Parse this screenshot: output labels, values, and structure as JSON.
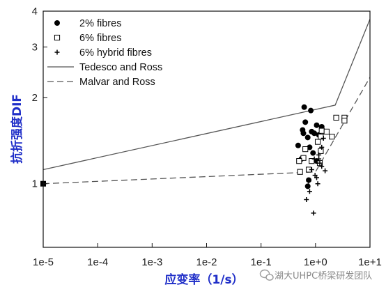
{
  "chart_data": {
    "type": "scatter",
    "xlabel": "应变率（1/s）",
    "ylabel": "抗折强度DIF",
    "xscale": "log",
    "yscale": "log",
    "xlim": [
      1e-05,
      10
    ],
    "ylim": [
      0.6,
      4
    ],
    "x_ticks": [
      {
        "value": 1e-05,
        "label": "1e-5"
      },
      {
        "value": 0.0001,
        "label": "1e-4"
      },
      {
        "value": 0.001,
        "label": "1e-3"
      },
      {
        "value": 0.01,
        "label": "1e-2"
      },
      {
        "value": 0.1,
        "label": "1e-1"
      },
      {
        "value": 1,
        "label": "1e+0"
      },
      {
        "value": 10,
        "label": "1e+1"
      }
    ],
    "y_ticks": [
      {
        "value": 1,
        "label": "1"
      },
      {
        "value": 2,
        "label": "2"
      },
      {
        "value": 3,
        "label": "3"
      },
      {
        "value": 4,
        "label": "4"
      }
    ],
    "legend_position": "top-left",
    "grid": false,
    "series": [
      {
        "name": "2% fibres",
        "kind": "points",
        "marker": "filled-circle",
        "color": "#000000",
        "points": [
          {
            "x": 0.62,
            "y": 1.85
          },
          {
            "x": 0.82,
            "y": 1.8
          },
          {
            "x": 0.65,
            "y": 1.64
          },
          {
            "x": 1.05,
            "y": 1.6
          },
          {
            "x": 1.3,
            "y": 1.58
          },
          {
            "x": 0.58,
            "y": 1.54
          },
          {
            "x": 0.85,
            "y": 1.52
          },
          {
            "x": 0.95,
            "y": 1.5
          },
          {
            "x": 0.6,
            "y": 1.5
          },
          {
            "x": 1.15,
            "y": 1.48
          },
          {
            "x": 0.72,
            "y": 1.45
          },
          {
            "x": 0.48,
            "y": 1.36
          },
          {
            "x": 0.78,
            "y": 1.34
          },
          {
            "x": 0.9,
            "y": 1.28
          },
          {
            "x": 0.55,
            "y": 1.22
          },
          {
            "x": 1.05,
            "y": 1.2
          },
          {
            "x": 0.75,
            "y": 1.03
          },
          {
            "x": 0.72,
            "y": 0.98
          }
        ]
      },
      {
        "name": "6% fibres",
        "kind": "points",
        "marker": "open-square",
        "color": "#000000",
        "points": [
          {
            "x": 2.4,
            "y": 1.7
          },
          {
            "x": 3.4,
            "y": 1.7
          },
          {
            "x": 3.4,
            "y": 1.66
          },
          {
            "x": 1.3,
            "y": 1.53
          },
          {
            "x": 1.6,
            "y": 1.52
          },
          {
            "x": 1.25,
            "y": 1.46
          },
          {
            "x": 2.0,
            "y": 1.46
          },
          {
            "x": 1.1,
            "y": 1.4
          },
          {
            "x": 0.65,
            "y": 1.32
          },
          {
            "x": 1.25,
            "y": 1.3
          },
          {
            "x": 0.6,
            "y": 1.23
          },
          {
            "x": 0.5,
            "y": 1.2
          },
          {
            "x": 0.85,
            "y": 1.2
          },
          {
            "x": 1.2,
            "y": 1.18
          },
          {
            "x": 0.52,
            "y": 1.1
          },
          {
            "x": 0.75,
            "y": 1.12
          }
        ]
      },
      {
        "name": "6% hybrid fibres",
        "kind": "points",
        "marker": "plus",
        "color": "#000000",
        "points": [
          {
            "x": 1.4,
            "y": 1.44
          },
          {
            "x": 1.3,
            "y": 1.34
          },
          {
            "x": 1.15,
            "y": 1.26
          },
          {
            "x": 0.95,
            "y": 1.22
          },
          {
            "x": 1.15,
            "y": 1.22
          },
          {
            "x": 1.2,
            "y": 1.18
          },
          {
            "x": 1.3,
            "y": 1.15
          },
          {
            "x": 0.85,
            "y": 1.12
          },
          {
            "x": 1.5,
            "y": 1.11
          },
          {
            "x": 0.98,
            "y": 1.07
          },
          {
            "x": 1.05,
            "y": 1.05
          },
          {
            "x": 0.75,
            "y": 1.02
          },
          {
            "x": 1.1,
            "y": 1.0
          },
          {
            "x": 0.78,
            "y": 0.94
          },
          {
            "x": 0.68,
            "y": 0.88
          },
          {
            "x": 0.92,
            "y": 0.79
          }
        ]
      },
      {
        "name": "Tedesco and Ross",
        "kind": "line",
        "style": "solid",
        "color": "#555555",
        "points": [
          {
            "x": 1e-05,
            "y": 1.12
          },
          {
            "x": 2.3,
            "y": 1.88
          },
          {
            "x": 10,
            "y": 3.75
          }
        ]
      },
      {
        "name": "Malvar and Ross",
        "kind": "line",
        "style": "dashed",
        "color": "#555555",
        "points": [
          {
            "x": 1e-05,
            "y": 1.0
          },
          {
            "x": 1.0,
            "y": 1.1
          },
          {
            "x": 10,
            "y": 2.35
          }
        ]
      },
      {
        "kind": "points",
        "marker": "filled-square",
        "color": "#000000",
        "points": [
          {
            "x": 1e-05,
            "y": 1.0
          }
        ]
      }
    ]
  },
  "watermark": {
    "text": "湖大UHPC桥梁研发团队",
    "icon": "wechat-icon"
  }
}
